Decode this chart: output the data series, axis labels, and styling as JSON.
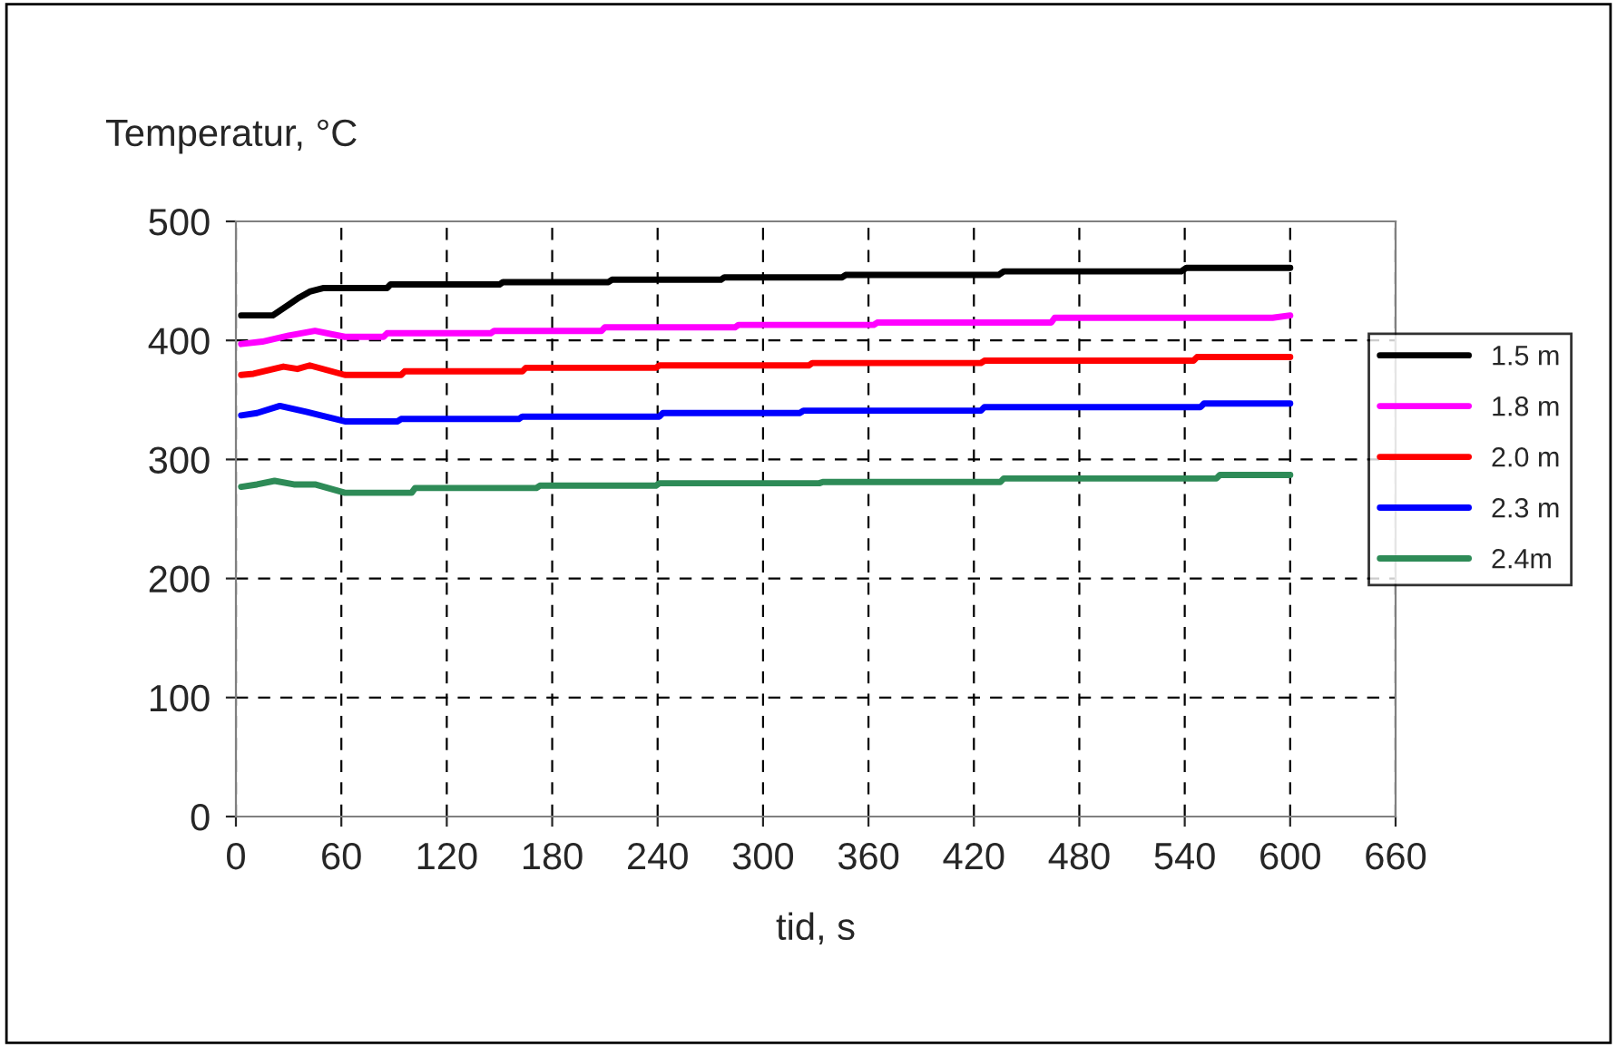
{
  "chart_data": {
    "type": "line",
    "xlabel": "tid, s",
    "ylabel": "Temperatur, °C",
    "xlim": [
      0,
      660
    ],
    "xticks": [
      0,
      60,
      120,
      180,
      240,
      300,
      360,
      420,
      480,
      540,
      600,
      660
    ],
    "ylim": [
      0,
      500
    ],
    "yticks": [
      0,
      100,
      200,
      300,
      400,
      500
    ],
    "grid": true,
    "legend": "right",
    "line_style": "solid",
    "marker": "none",
    "series": [
      {
        "name": "1.5 m",
        "color": "#000000",
        "x": [
          3,
          21,
          30,
          36,
          42,
          50,
          86,
          88,
          150,
          152,
          212,
          214,
          276,
          278,
          345,
          347,
          434,
          437,
          538,
          541,
          600
        ],
        "values": [
          421,
          421,
          430,
          436,
          441,
          444,
          444,
          447,
          447,
          449,
          449,
          451,
          451,
          453,
          453,
          455,
          455,
          458,
          458,
          461,
          461
        ]
      },
      {
        "name": "1.8 m",
        "color": "#ff00ff",
        "x": [
          3,
          15,
          30,
          45,
          62,
          84,
          86,
          145,
          147,
          208,
          210,
          284,
          286,
          363,
          365,
          464,
          466,
          590,
          600
        ],
        "values": [
          397,
          399,
          404,
          408,
          403,
          403,
          406,
          406,
          408,
          408,
          411,
          411,
          413,
          413,
          415,
          415,
          419,
          419,
          421
        ]
      },
      {
        "name": "2.0 m",
        "color": "#ff0000",
        "x": [
          3,
          10,
          27,
          35,
          42,
          62,
          94,
          96,
          163,
          165,
          239,
          241,
          326,
          328,
          424,
          426,
          545,
          547,
          600
        ],
        "values": [
          371,
          372,
          378,
          376,
          379,
          371,
          371,
          374,
          374,
          377,
          377,
          379,
          379,
          381,
          381,
          383,
          383,
          386,
          386
        ]
      },
      {
        "name": "2.3 m",
        "color": "#0000ff",
        "x": [
          3,
          12,
          25,
          40,
          62,
          92,
          94,
          161,
          163,
          241,
          243,
          321,
          323,
          424,
          426,
          549,
          551,
          600
        ],
        "values": [
          337,
          339,
          345,
          340,
          332,
          332,
          334,
          334,
          336,
          336,
          339,
          339,
          341,
          341,
          344,
          344,
          347,
          347
        ]
      },
      {
        "name": "2.4m",
        "color": "#2e8b57",
        "x": [
          3,
          12,
          22,
          33,
          45,
          62,
          100,
          102,
          171,
          173,
          239,
          241,
          332,
          334,
          435,
          437,
          558,
          560,
          600
        ],
        "values": [
          277,
          279,
          282,
          279,
          279,
          272,
          272,
          276,
          276,
          278,
          278,
          280,
          280,
          281,
          281,
          284,
          284,
          287,
          287
        ]
      }
    ]
  }
}
